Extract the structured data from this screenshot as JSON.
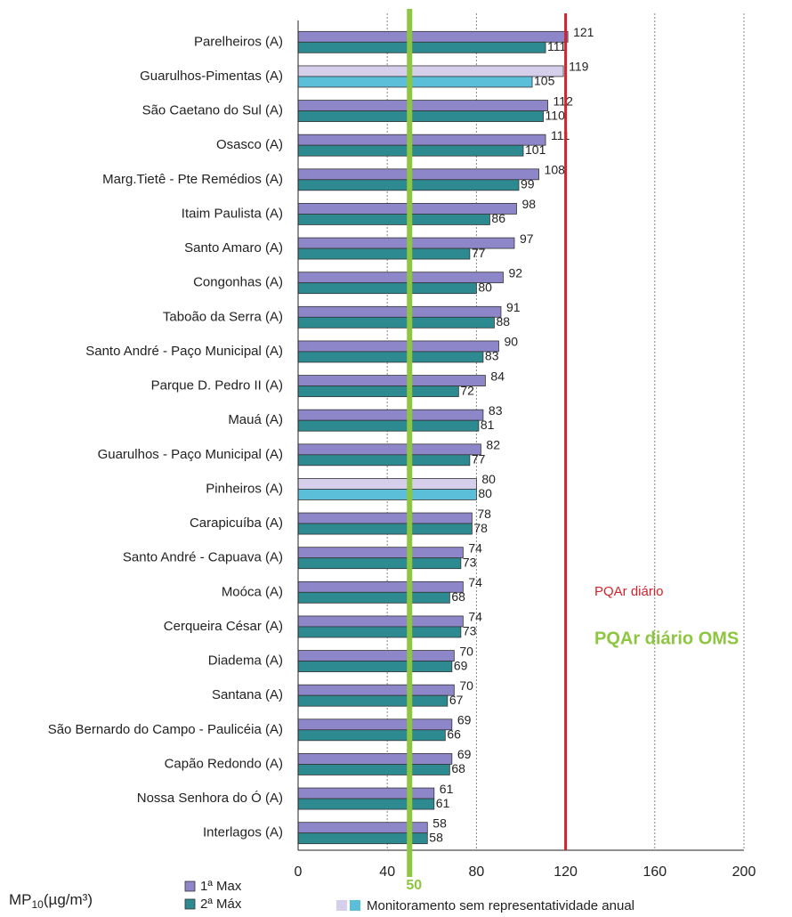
{
  "chart_data": {
    "type": "hbar",
    "categories": [
      "Parelheiros (A)",
      "Guarulhos-Pimentas (A)",
      "São Caetano do Sul (A)",
      "Osasco (A)",
      "Marg.Tietê - Pte Remédios (A)",
      "Itaim Paulista (A)",
      "Santo Amaro (A)",
      "Congonhas (A)",
      "Taboão da Serra (A)",
      "Santo André - Paço Municipal (A)",
      "Parque D. Pedro II (A)",
      "Mauá (A)",
      "Guarulhos - Paço Municipal (A)",
      "Pinheiros (A)",
      "Carapicuíba (A)",
      "Santo André - Capuava (A)",
      "Moóca (A)",
      "Cerqueira César (A)",
      "Diadema (A)",
      "Santana (A)",
      "São Bernardo do Campo - Paulicéia (A)",
      "Capão Redondo (A)",
      "Nossa Senhora do Ó (A)",
      "Interlagos (A)"
    ],
    "series": [
      {
        "name": "1ª Max",
        "color": "#8d86c9",
        "colors": [
          "#8d86c9",
          "#d6cfeb",
          "#8d86c9",
          "#8d86c9",
          "#8d86c9",
          "#8d86c9",
          "#8d86c9",
          "#8d86c9",
          "#8d86c9",
          "#8d86c9",
          "#8d86c9",
          "#8d86c9",
          "#8d86c9",
          "#d6cfeb",
          "#8d86c9",
          "#8d86c9",
          "#8d86c9",
          "#8d86c9",
          "#8d86c9",
          "#8d86c9",
          "#8d86c9",
          "#8d86c9",
          "#8d86c9",
          "#8d86c9"
        ],
        "values": [
          121,
          119,
          112,
          111,
          108,
          98,
          97,
          92,
          91,
          90,
          84,
          83,
          82,
          80,
          78,
          74,
          74,
          74,
          70,
          70,
          69,
          69,
          61,
          58
        ]
      },
      {
        "name": "2ª Máx",
        "color": "#2d8a90",
        "colors": [
          "#2d8a90",
          "#5bbfd9",
          "#2d8a90",
          "#2d8a90",
          "#2d8a90",
          "#2d8a90",
          "#2d8a90",
          "#2d8a90",
          "#2d8a90",
          "#2d8a90",
          "#2d8a90",
          "#2d8a90",
          "#2d8a90",
          "#5bbfd9",
          "#2d8a90",
          "#2d8a90",
          "#2d8a90",
          "#2d8a90",
          "#2d8a90",
          "#2d8a90",
          "#2d8a90",
          "#2d8a90",
          "#2d8a90",
          "#2d8a90"
        ],
        "values": [
          111,
          105,
          110,
          101,
          99,
          86,
          77,
          80,
          88,
          83,
          72,
          81,
          77,
          80,
          78,
          73,
          68,
          73,
          69,
          67,
          66,
          68,
          61,
          58
        ]
      }
    ],
    "xlim": [
      0,
      200
    ],
    "xticks": [
      0,
      40,
      80,
      120,
      160,
      200
    ],
    "grid": true,
    "reference_lines": [
      {
        "value": 120,
        "label": "PQAr diário",
        "color": "#d2232a"
      },
      {
        "value": 50,
        "label": "PQAr diário OMS",
        "color": "#8dc63f"
      }
    ],
    "unit_label": {
      "main": "MP",
      "subscript": "10",
      "rest": "(µg/m³)"
    },
    "note_legend": {
      "label": "Monitoramento sem representatividade anual",
      "colors": [
        "#d6cfeb",
        "#5bbfd9"
      ]
    }
  }
}
